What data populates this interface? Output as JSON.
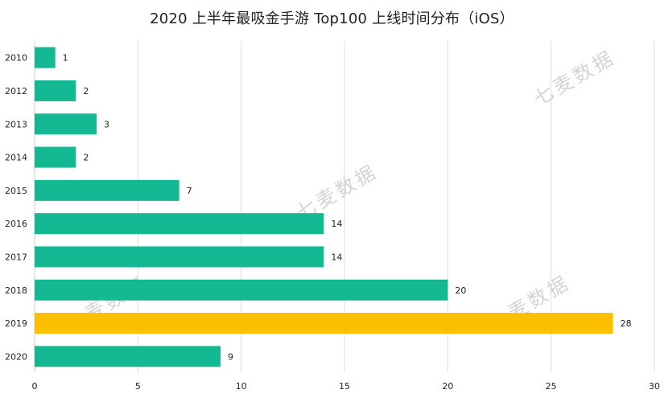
{
  "title": "2020 上半年最吸金手游 Top100 上线时间分布（iOS）",
  "watermark": "七麦数据",
  "colors": {
    "bar": "#14b893",
    "highlight": "#fcc000",
    "grid": "#dcdcdc",
    "axis": "#cccccc",
    "text": "#222222"
  },
  "chart_data": {
    "type": "bar",
    "orientation": "horizontal",
    "title": "2020 上半年最吸金手游 Top100 上线时间分布（iOS）",
    "categories": [
      "2010",
      "2012",
      "2013",
      "2014",
      "2015",
      "2016",
      "2017",
      "2018",
      "2019",
      "2020"
    ],
    "values": [
      1,
      2,
      3,
      2,
      7,
      14,
      14,
      20,
      28,
      9
    ],
    "highlight_category": "2019",
    "xlim": [
      0,
      30
    ],
    "xticks": [
      0,
      5,
      10,
      15,
      20,
      25,
      30
    ],
    "grid": true,
    "legend": "none",
    "data_labels": true,
    "xlabel": "",
    "ylabel": ""
  }
}
